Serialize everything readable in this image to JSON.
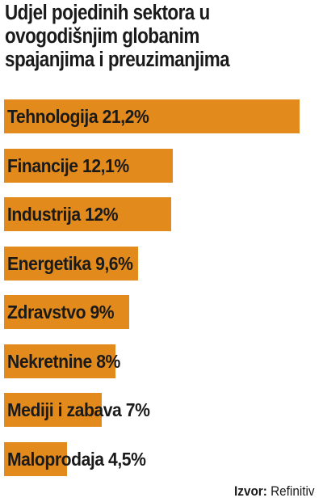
{
  "chart_data": {
    "type": "bar",
    "orientation": "horizontal",
    "title": "Udjel pojedinih sektora u ovogodišnjim globanim spajanjima i preuzimanjima",
    "categories": [
      "Tehnologija",
      "Financije",
      "Industrija",
      "Energetika",
      "Zdravstvo",
      "Nekretnine",
      "Mediji i zabava",
      "Maloprodaja"
    ],
    "values": [
      21.2,
      12.1,
      12,
      9.6,
      9,
      8,
      7,
      4.5
    ],
    "labels": [
      "Tehnologija 21,2%",
      "Financije 12,1%",
      "Industrija 12%",
      " Energetika 9,6%",
      "Zdravstvo 9%",
      "Nekretnine 8%",
      "Mediji i zabava 7%",
      "Maloprodaja 4,5%"
    ],
    "unit": "%",
    "bar_color": "#e28a1c",
    "grid": false,
    "legend": "none"
  },
  "source": {
    "label": "Izvor:",
    "name": "Refinitiv"
  }
}
